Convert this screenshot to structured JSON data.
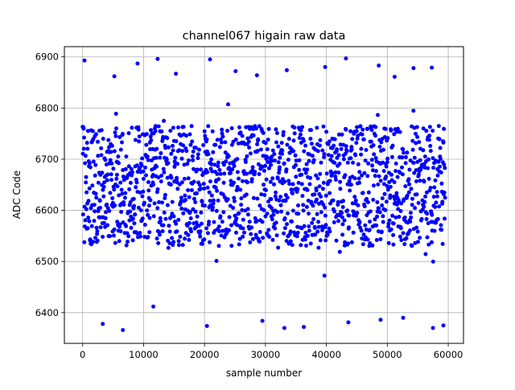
{
  "chart_data": {
    "type": "scatter",
    "title": "channel067 higain raw data",
    "xlabel": "sample number",
    "ylabel": "ADC Code",
    "xlim": [
      -3000,
      62500
    ],
    "ylim": [
      6340,
      6920
    ],
    "xticks": [
      0,
      10000,
      20000,
      30000,
      40000,
      50000,
      60000
    ],
    "yticks": [
      6400,
      6500,
      6600,
      6700,
      6800,
      6900
    ],
    "grid": true,
    "legend": "none",
    "marker_color": "#0000ff",
    "samples": {
      "x_min": 0,
      "x_max": 59500,
      "step": 40
    },
    "band": {
      "mean": 6647,
      "core_low": 6530,
      "core_high": 6765
    },
    "outliers": [
      [
        300,
        6893
      ],
      [
        12300,
        6896
      ],
      [
        20900,
        6895
      ],
      [
        43200,
        6897
      ],
      [
        9000,
        6887
      ],
      [
        48600,
        6883
      ],
      [
        39800,
        6880
      ],
      [
        54300,
        6878
      ],
      [
        57300,
        6879
      ],
      [
        33500,
        6874
      ],
      [
        25100,
        6872
      ],
      [
        15300,
        6867
      ],
      [
        5200,
        6862
      ],
      [
        28600,
        6864
      ],
      [
        51200,
        6861
      ],
      [
        6600,
        6366
      ],
      [
        33100,
        6370
      ],
      [
        36300,
        6372
      ],
      [
        57500,
        6370
      ],
      [
        3300,
        6378
      ],
      [
        20400,
        6374
      ],
      [
        43600,
        6381
      ],
      [
        48900,
        6386
      ],
      [
        29500,
        6384
      ],
      [
        52600,
        6390
      ],
      [
        59200,
        6375
      ],
      [
        11600,
        6412
      ]
    ]
  }
}
